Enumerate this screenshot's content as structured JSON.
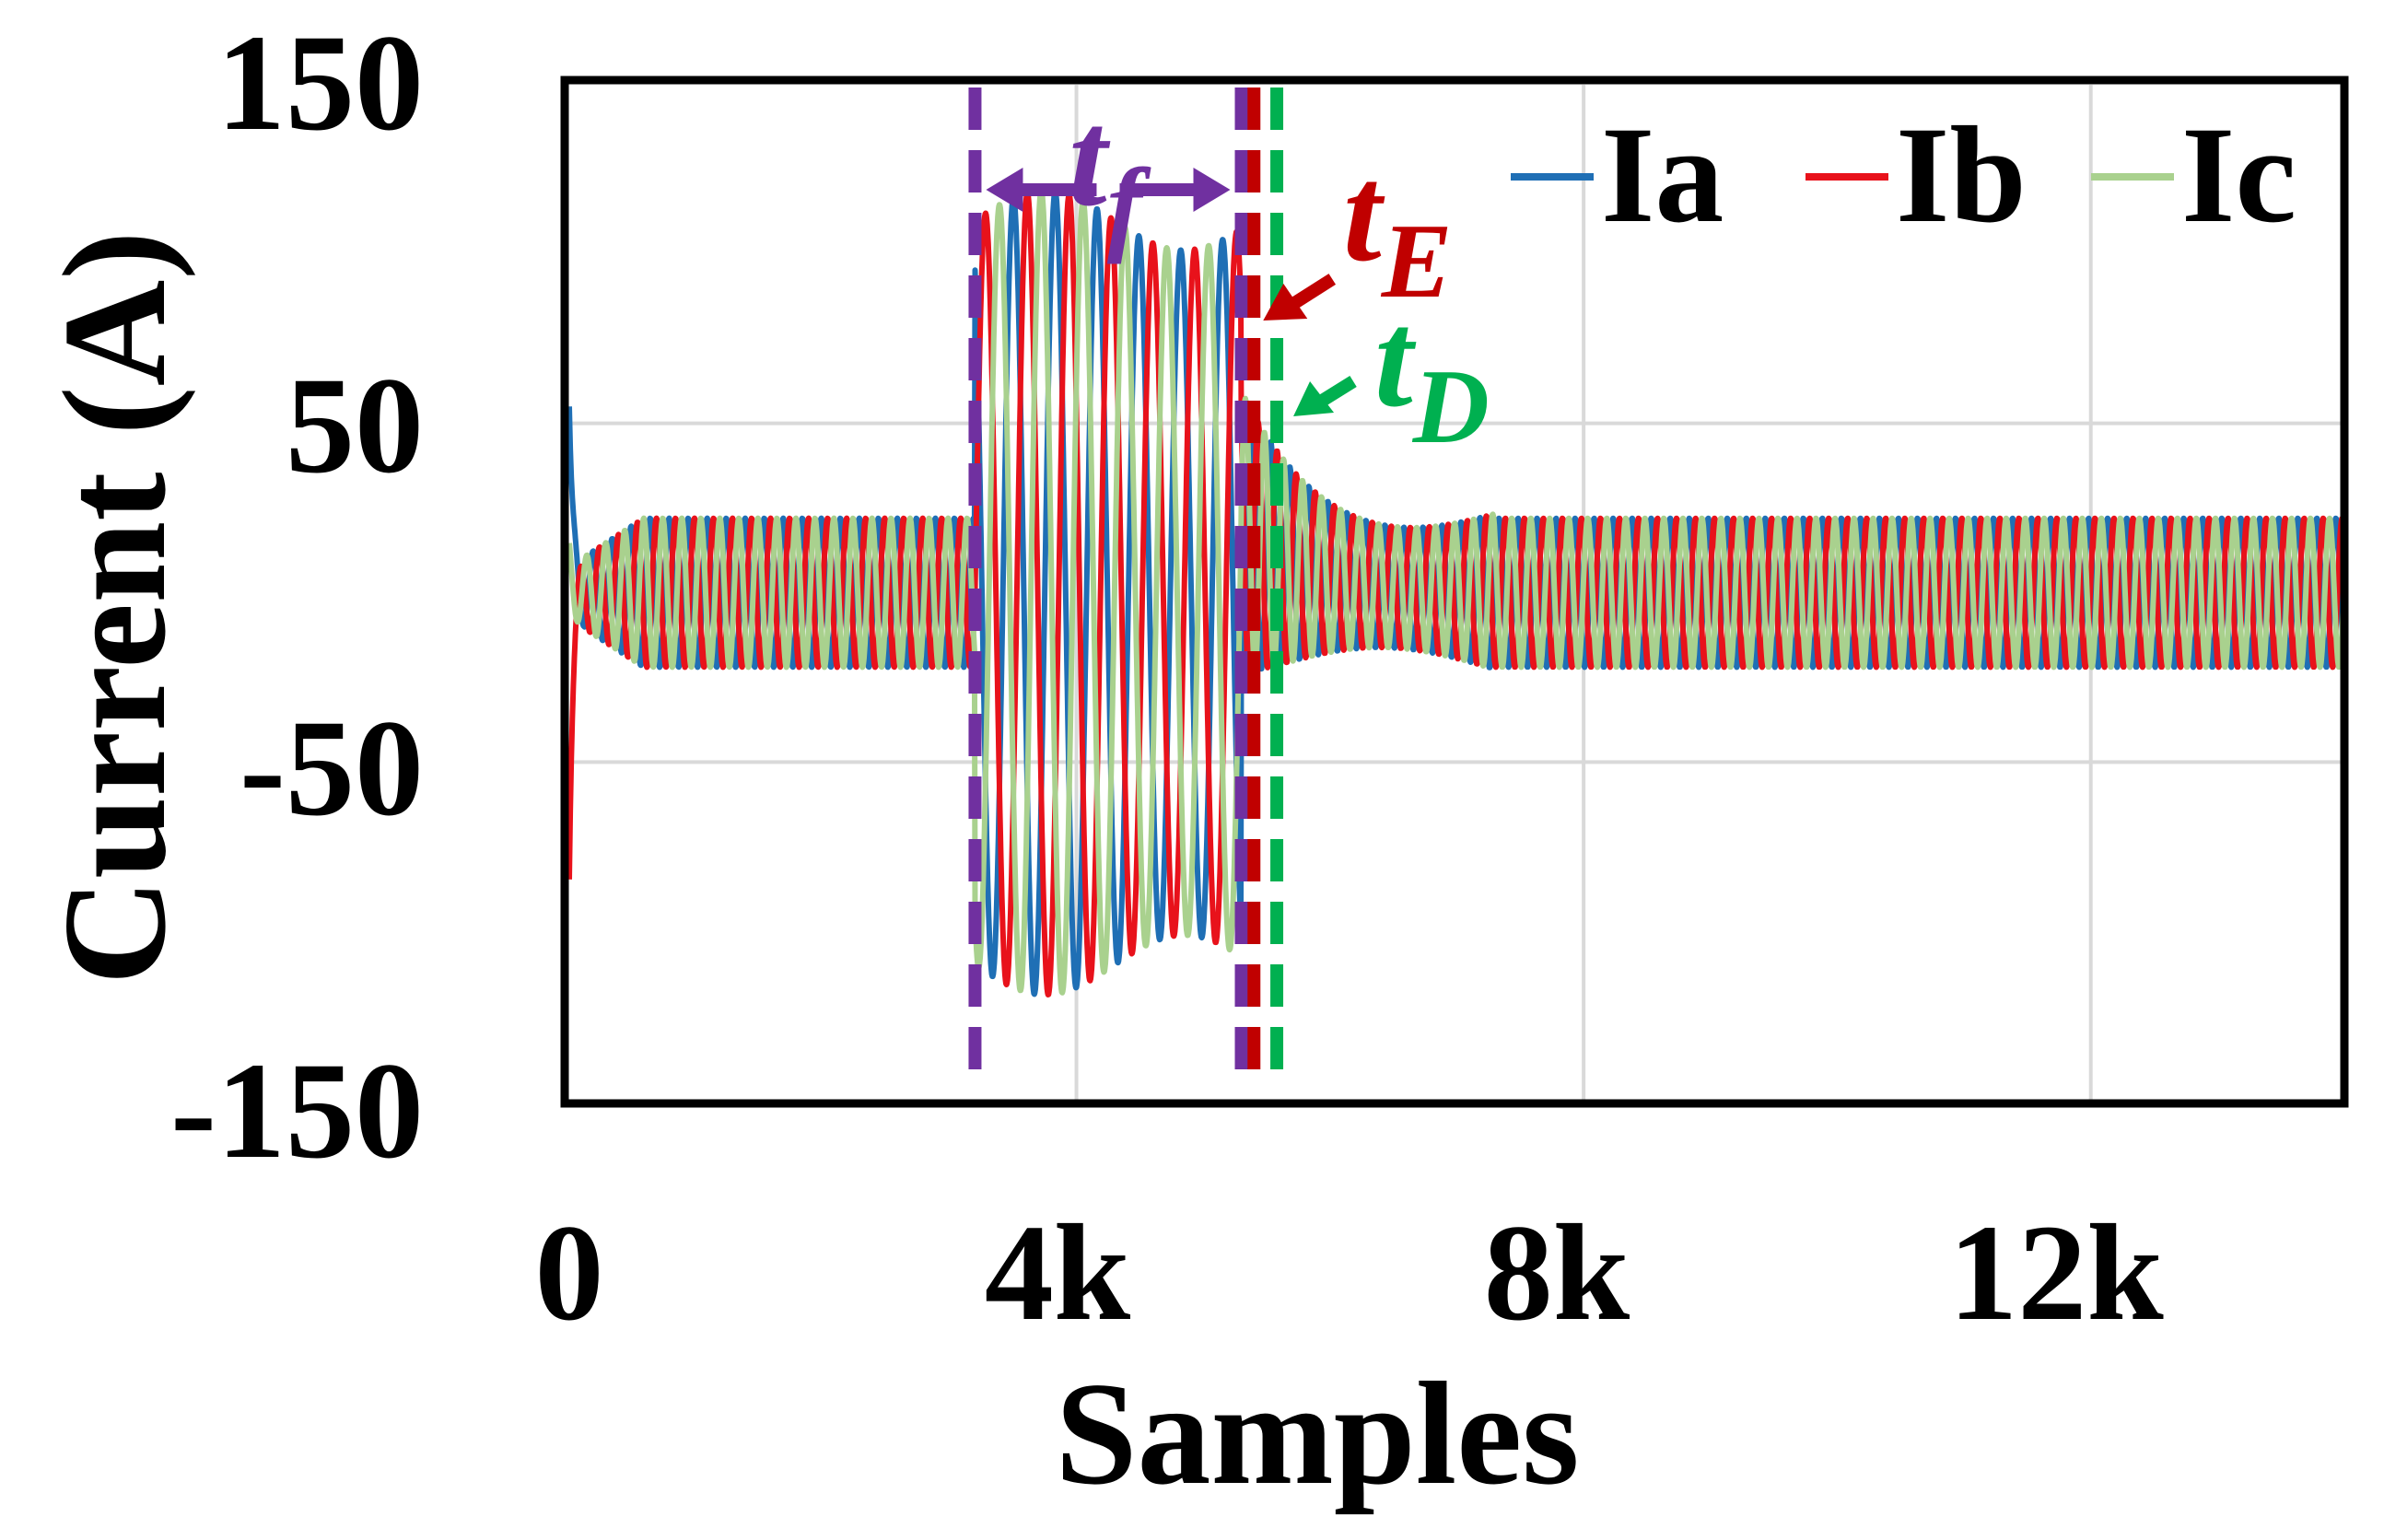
{
  "chart_data": {
    "type": "line",
    "title": "",
    "xlabel": "Samples",
    "ylabel": "Current (A)",
    "xlim": [
      0,
      14000
    ],
    "ylim": [
      -150,
      150
    ],
    "xticks": [
      0,
      4000,
      8000,
      12000
    ],
    "xtick_labels": [
      "0",
      "4k",
      "8k",
      "12k"
    ],
    "yticks": [
      150,
      50,
      -50,
      -150
    ],
    "ytick_labels": [
      "150",
      "50",
      "-50",
      "-150"
    ],
    "grid": true,
    "legend": "top-right",
    "signal": {
      "normal_amplitude": 22,
      "fault_amplitude": 110,
      "fault_start": 3200,
      "fault_end": 5300,
      "recovery_end": 7300,
      "samples_per_cycle_normal": 150,
      "samples_per_cycle_fault": 330
    },
    "series": [
      {
        "name": "Ia",
        "color": "#1f6fb5",
        "phase_deg": 0,
        "start_spike": 55
      },
      {
        "name": "Ib",
        "color": "#e8121b",
        "phase_deg": 120,
        "start_spike": -78
      },
      {
        "name": "Ic",
        "color": "#a9d18e",
        "phase_deg": 240,
        "start_spike": 8
      }
    ],
    "annotations": [
      {
        "label": "t",
        "sub": "f",
        "x_from": 3200,
        "x_to": 5300,
        "color": "#7030a0"
      },
      {
        "label": "t",
        "sub": "E",
        "x": 5400,
        "color": "#c00000"
      },
      {
        "label": "t",
        "sub": "D",
        "x": 5580,
        "color": "#00b050"
      }
    ]
  }
}
